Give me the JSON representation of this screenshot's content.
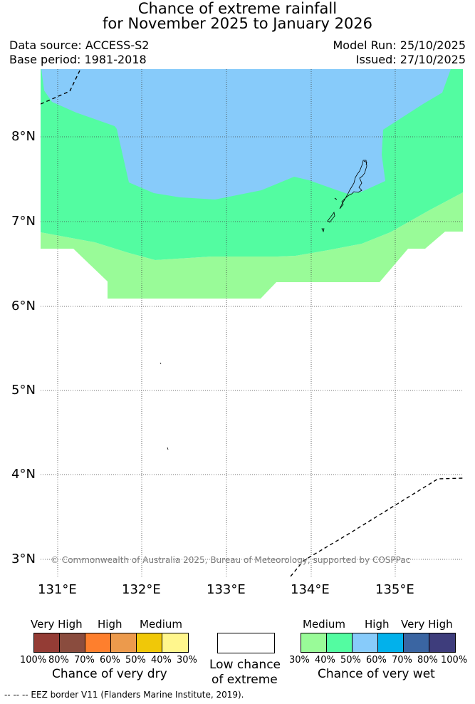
{
  "title": {
    "line1": "Chance of extreme rainfall",
    "line2": "for November 2025 to January 2026"
  },
  "meta": {
    "data_source": "Data source: ACCESS-S2",
    "base_period": "Base period: 1981-2018",
    "model_run": "Model Run: 25/10/2025",
    "issued": "Issued: 27/10/2025"
  },
  "map": {
    "lat_labels": [
      "8°N",
      "7°N",
      "6°N",
      "5°N",
      "4°N",
      "3°N"
    ],
    "lon_labels": [
      "131°E",
      "132°E",
      "133°E",
      "134°E",
      "135°E"
    ],
    "lon_range": [
      130.8,
      135.8
    ],
    "lat_range": [
      2.8,
      8.8
    ],
    "copyright": "© Commonwealth of Australia 2025, Bureau of Meteorology, supported by COSPPac",
    "colors": {
      "medium_wet": "#99FB98",
      "high_wet": "#53FCA1",
      "very_high_wet": "#87CBFA",
      "eez_line": "#000000",
      "grid": "#444444"
    }
  },
  "legend_dry": {
    "categories": [
      "Very High",
      "High",
      "Medium"
    ],
    "percent_labels": [
      "100%",
      "80%",
      "70%",
      "60%",
      "50%",
      "40%",
      "30%"
    ],
    "colors": [
      "#943C35",
      "#8A4C3E",
      "#FE7F2D",
      "#EC9A4C",
      "#F0C808",
      "#FFF68D"
    ],
    "title": "Chance of very dry"
  },
  "legend_low": {
    "line1": "Low chance",
    "line2": "of extreme"
  },
  "legend_wet": {
    "categories": [
      "Medium",
      "High",
      "Very High"
    ],
    "percent_labels": [
      "30%",
      "40%",
      "50%",
      "60%",
      "70%",
      "80%",
      "100%"
    ],
    "colors": [
      "#99FB98",
      "#53FCA1",
      "#87CBFA",
      "#02B1EB",
      "#3A65A2",
      "#3E3D7C"
    ],
    "title": "Chance of very wet"
  },
  "footnote": "--  --  -- EEZ border V11 (Flanders Marine Institute, 2019)."
}
